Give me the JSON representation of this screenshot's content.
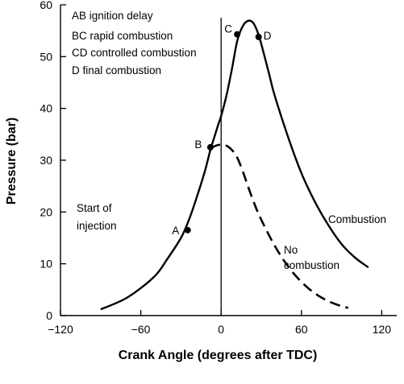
{
  "chart_data": {
    "type": "line",
    "title": "",
    "xlabel": "Crank Angle (degrees after TDC)",
    "ylabel": "Pressure (bar)",
    "xlim": [
      -120,
      130
    ],
    "ylim": [
      0,
      60
    ],
    "xticks": [
      -120,
      -60,
      0,
      60,
      120
    ],
    "yticks": [
      0,
      10,
      20,
      30,
      40,
      50,
      60
    ],
    "xtick_labels": [
      "−120",
      "−60",
      "0",
      "60",
      "120"
    ],
    "ytick_labels": [
      "0",
      "10",
      "20",
      "30",
      "40",
      "50",
      "60"
    ],
    "grid": false,
    "reference_line_x": 0,
    "series": [
      {
        "name": "Combustion",
        "style": "solid",
        "x": [
          -90,
          -70,
          -50,
          -40,
          -30,
          -24,
          -18,
          -12,
          -8,
          -5,
          -2,
          0,
          4,
          8,
          12,
          16,
          20,
          24,
          28,
          32,
          36,
          40,
          50,
          60,
          70,
          80,
          90,
          100,
          110
        ],
        "y": [
          1.2,
          3.5,
          7.5,
          11,
          15,
          18.5,
          23,
          28,
          32,
          34.5,
          37,
          38.5,
          42.5,
          47.5,
          53,
          55.8,
          56.9,
          56.5,
          54.2,
          50.5,
          46.5,
          42.5,
          34.5,
          27.5,
          22,
          17.5,
          13.8,
          11.2,
          9.3
        ]
      },
      {
        "name": "No combustion",
        "style": "dashed",
        "x": [
          -8,
          -4,
          0,
          4,
          8,
          12,
          16,
          20,
          25,
          30,
          40,
          50,
          60,
          70,
          80,
          90,
          95
        ],
        "y": [
          32.3,
          32.8,
          33,
          32.8,
          32,
          30.5,
          28,
          25,
          21.5,
          18.5,
          13.5,
          9.5,
          6.5,
          4.3,
          2.8,
          1.8,
          1.5
        ]
      }
    ],
    "points": [
      {
        "label": "A",
        "x": -25,
        "y": 16.5
      },
      {
        "label": "B",
        "x": -8,
        "y": 32.5
      },
      {
        "label": "C",
        "x": 12,
        "y": 54.3
      },
      {
        "label": "D",
        "x": 28,
        "y": 53.8
      }
    ],
    "annotations": {
      "legend_lines": [
        "AB ignition delay",
        "BC rapid combustion",
        "CD controlled combustion",
        "D final combustion"
      ],
      "injection": [
        "Start of",
        "injection"
      ],
      "combustion": "Combustion",
      "no_combustion": [
        "No",
        "combustion"
      ]
    }
  }
}
